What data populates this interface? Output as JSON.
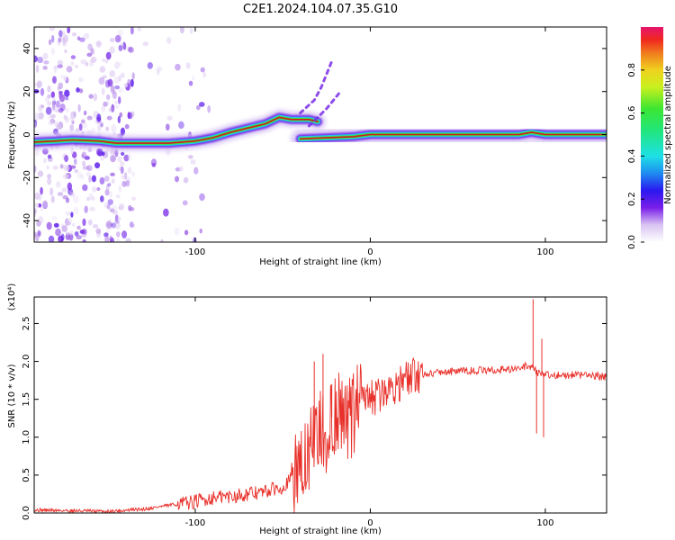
{
  "title": "C2E1.2024.104.07.35.G10",
  "colorbar_label": "Normalized spectral amplitude",
  "colors": {
    "snr_line": "#e8302a",
    "ridge_core": "#d4181e",
    "spectral_scale": [
      "#ffffff",
      "#e6d9f5",
      "#b98ae6",
      "#7a1ee8",
      "#3b14f0",
      "#1e6ef0",
      "#1ed2f0",
      "#21e6a0",
      "#32e632",
      "#b4f01e",
      "#f0e61e",
      "#f09b1e",
      "#f0461e",
      "#e6142d",
      "#e6145a"
    ]
  },
  "chart_data": [
    {
      "id": "spectrogram",
      "type": "heatmap",
      "title": "C2E1.2024.104.07.35.G10",
      "xlabel": "Height of straight line (km)",
      "ylabel": "Frequency (Hz)",
      "xlim": [
        -192,
        135
      ],
      "ylim": [
        -50,
        50
      ],
      "xticks": [
        -100,
        0,
        100
      ],
      "yticks": [
        -40,
        -20,
        0,
        20,
        40
      ],
      "colorbar": {
        "label": "Normalized spectral amplitude",
        "range": [
          0,
          1
        ],
        "ticks": [
          0.0,
          0.2,
          0.4,
          0.6,
          0.8
        ]
      },
      "ridge": [
        {
          "x": -192,
          "y": -3.5
        },
        {
          "x": -180,
          "y": -3
        },
        {
          "x": -170,
          "y": -2.5
        },
        {
          "x": -155,
          "y": -3
        },
        {
          "x": -145,
          "y": -4
        },
        {
          "x": -130,
          "y": -4
        },
        {
          "x": -115,
          "y": -4
        },
        {
          "x": -100,
          "y": -3
        },
        {
          "x": -90,
          "y": -1.5
        },
        {
          "x": -80,
          "y": 1
        },
        {
          "x": -70,
          "y": 3
        },
        {
          "x": -60,
          "y": 5
        },
        {
          "x": -52,
          "y": 8
        },
        {
          "x": -45,
          "y": 7
        },
        {
          "x": -35,
          "y": 7
        },
        {
          "x": -30,
          "y": 6
        }
      ],
      "ridge_lower": [
        {
          "x": -40,
          "y": -2
        },
        {
          "x": -25,
          "y": -1.5
        },
        {
          "x": -10,
          "y": -1
        },
        {
          "x": 0,
          "y": 0
        },
        {
          "x": 20,
          "y": 0
        },
        {
          "x": 60,
          "y": 0
        },
        {
          "x": 85,
          "y": 0
        },
        {
          "x": 92,
          "y": 1
        },
        {
          "x": 100,
          "y": 0
        },
        {
          "x": 135,
          "y": 0
        }
      ],
      "branches": [
        [
          {
            "x": -40,
            "y": 10
          },
          {
            "x": -32,
            "y": 16
          },
          {
            "x": -28,
            "y": 22
          },
          {
            "x": -22,
            "y": 34
          }
        ],
        [
          {
            "x": -35,
            "y": 4
          },
          {
            "x": -25,
            "y": 12
          },
          {
            "x": -18,
            "y": 19
          }
        ]
      ]
    },
    {
      "id": "snr",
      "type": "line",
      "xlabel": "Height of straight line (km)",
      "ylabel": "SNR (10 * v/v)",
      "yunit": "(x10⁴)",
      "xlim": [
        -192,
        135
      ],
      "ylim": [
        0,
        2.85
      ],
      "xticks": [
        -100,
        0,
        100
      ],
      "yticks": [
        0.0,
        0.5,
        1.0,
        1.5,
        2.0,
        2.5
      ],
      "series": [
        {
          "x": [
            -192,
            -170,
            -150,
            -130,
            -115,
            -100,
            -90,
            -80,
            -70,
            -60,
            -50,
            -45,
            -40,
            -35,
            -30,
            -25,
            -20,
            -15,
            -10,
            -5,
            0,
            5,
            10,
            15,
            20,
            25,
            30,
            40,
            50,
            60,
            70,
            80,
            85,
            90,
            93,
            96,
            100,
            110,
            120,
            135
          ],
          "y": [
            0.04,
            0.03,
            0.02,
            0.05,
            0.1,
            0.15,
            0.2,
            0.22,
            0.25,
            0.28,
            0.35,
            0.45,
            0.6,
            0.85,
            1.05,
            1.2,
            1.3,
            1.35,
            1.4,
            1.45,
            1.5,
            1.55,
            1.62,
            1.7,
            1.75,
            1.8,
            1.83,
            1.86,
            1.87,
            1.88,
            1.88,
            1.9,
            1.9,
            1.95,
            1.92,
            1.85,
            1.82,
            1.82,
            1.82,
            1.8
          ]
        }
      ],
      "spikes": [
        {
          "x": -32,
          "y": 2.0
        },
        {
          "x": -27,
          "y": 2.1
        },
        {
          "x": -22,
          "y": 1.7
        },
        {
          "x": -17,
          "y": 1.5
        },
        {
          "x": -12,
          "y": 1.6
        },
        {
          "x": 93,
          "y": 2.82
        },
        {
          "x": 95,
          "y": 1.05
        },
        {
          "x": 98,
          "y": 2.3
        },
        {
          "x": 99,
          "y": 1.0
        }
      ]
    }
  ]
}
